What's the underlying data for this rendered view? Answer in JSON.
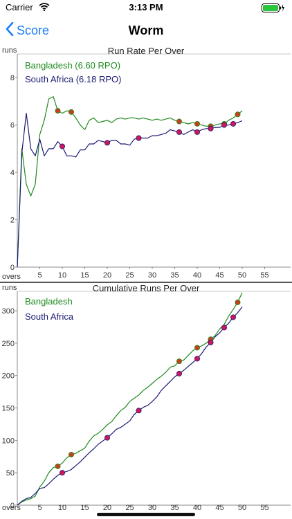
{
  "status_bar": {
    "carrier": "Carrier",
    "time": "3:13 PM"
  },
  "nav": {
    "back_label": "Score",
    "title": "Worm"
  },
  "colors": {
    "bangladesh": "#1f8a1f",
    "south_africa": "#1a1a73",
    "marker_bangladesh": "#c8401b",
    "marker_south_africa": "#d1165a",
    "accent": "#1a7ef7"
  },
  "chart_data": [
    {
      "type": "line",
      "title": "Run Rate Per Over",
      "xlabel": "overs",
      "ylabel": "runs",
      "xlim": [
        0,
        60
      ],
      "ylim": [
        0,
        9
      ],
      "xticks": [
        5,
        10,
        15,
        20,
        25,
        30,
        35,
        40,
        45,
        50,
        55
      ],
      "yticks": [
        0,
        2,
        4,
        6,
        8
      ],
      "legend": "top-left",
      "series": [
        {
          "name": "Bangladesh (6.60 RPO)",
          "x": [
            0,
            1,
            2,
            3,
            4,
            5,
            6,
            7,
            8,
            9,
            10,
            11,
            12,
            13,
            14,
            15,
            16,
            17,
            18,
            19,
            20,
            21,
            22,
            23,
            24,
            25,
            26,
            27,
            28,
            29,
            30,
            31,
            32,
            33,
            34,
            35,
            36,
            37,
            38,
            39,
            40,
            41,
            42,
            43,
            44,
            45,
            46,
            47,
            48,
            49,
            50
          ],
          "y": [
            0,
            5.0,
            3.5,
            3.0,
            3.5,
            5.6,
            6.2,
            7.1,
            7.2,
            6.6,
            6.5,
            6.6,
            6.55,
            6.3,
            6.0,
            5.8,
            6.2,
            6.3,
            6.1,
            6.15,
            6.2,
            6.1,
            6.25,
            6.3,
            6.25,
            6.3,
            6.3,
            6.25,
            6.3,
            6.25,
            6.2,
            6.25,
            6.2,
            6.25,
            6.3,
            6.2,
            6.15,
            6.1,
            6.05,
            6.1,
            6.05,
            6.0,
            5.95,
            5.95,
            6.0,
            6.05,
            6.05,
            6.2,
            6.3,
            6.45,
            6.6
          ],
          "markers_x": [
            9,
            12,
            36,
            40,
            43,
            46,
            49
          ],
          "markers_y": [
            6.6,
            6.55,
            6.15,
            6.05,
            5.95,
            6.05,
            6.45
          ]
        },
        {
          "name": "South Africa (6.18 RPO)",
          "x": [
            0,
            1,
            2,
            3,
            4,
            5,
            6,
            7,
            8,
            9,
            10,
            11,
            12,
            13,
            14,
            15,
            16,
            17,
            18,
            19,
            20,
            21,
            22,
            23,
            24,
            25,
            26,
            27,
            28,
            29,
            30,
            31,
            32,
            33,
            34,
            35,
            36,
            37,
            38,
            39,
            40,
            41,
            42,
            43,
            44,
            45,
            46,
            47,
            48,
            49,
            50
          ],
          "y": [
            0,
            4.8,
            6.5,
            5.0,
            4.7,
            5.4,
            4.7,
            5.0,
            5.0,
            5.3,
            5.1,
            4.7,
            4.7,
            4.65,
            4.95,
            4.95,
            5.2,
            5.2,
            5.35,
            5.3,
            5.25,
            5.35,
            5.35,
            5.2,
            5.2,
            5.15,
            5.4,
            5.45,
            5.45,
            5.45,
            5.55,
            5.55,
            5.6,
            5.65,
            5.8,
            5.75,
            5.7,
            5.6,
            5.7,
            5.8,
            5.7,
            5.8,
            5.85,
            5.85,
            5.9,
            5.9,
            6.0,
            6.0,
            6.05,
            6.1,
            6.18
          ],
          "markers_x": [
            10,
            20,
            27,
            36,
            40,
            43,
            46,
            48
          ],
          "markers_y": [
            5.1,
            5.25,
            5.45,
            5.7,
            5.7,
            5.85,
            6.0,
            6.05
          ]
        }
      ]
    },
    {
      "type": "line",
      "title": "Cumulative Runs Per Over",
      "xlabel": "overs",
      "ylabel": "runs",
      "xlim": [
        0,
        60
      ],
      "ylim": [
        0,
        330
      ],
      "xticks": [
        5,
        10,
        15,
        20,
        25,
        30,
        35,
        40,
        45,
        50,
        55
      ],
      "yticks": [
        0,
        50,
        100,
        150,
        200,
        250,
        300
      ],
      "legend": "top-left",
      "series": [
        {
          "name": "Bangladesh",
          "x": [
            0,
            1,
            2,
            3,
            4,
            5,
            6,
            7,
            8,
            9,
            10,
            11,
            12,
            13,
            14,
            15,
            16,
            17,
            18,
            19,
            20,
            21,
            22,
            23,
            24,
            25,
            26,
            27,
            28,
            29,
            30,
            31,
            32,
            33,
            34,
            35,
            36,
            37,
            38,
            39,
            40,
            41,
            42,
            43,
            44,
            45,
            46,
            47,
            48,
            49,
            50
          ],
          "y": [
            0,
            5,
            8,
            10,
            14,
            28,
            37,
            50,
            58,
            60,
            65,
            73,
            78,
            80,
            84,
            88,
            99,
            107,
            111,
            117,
            124,
            129,
            138,
            146,
            151,
            160,
            165,
            170,
            177,
            182,
            188,
            194,
            199,
            205,
            213,
            215,
            222,
            224,
            231,
            238,
            243,
            246,
            250,
            256,
            262,
            272,
            279,
            292,
            302,
            313,
            328
          ],
          "markers_x": [
            9,
            12,
            36,
            40,
            43,
            49
          ],
          "markers_y": [
            60,
            78,
            222,
            243,
            256,
            313
          ]
        },
        {
          "name": "South Africa",
          "x": [
            0,
            1,
            2,
            3,
            4,
            5,
            6,
            7,
            8,
            9,
            10,
            11,
            12,
            13,
            14,
            15,
            16,
            17,
            18,
            19,
            20,
            21,
            22,
            23,
            24,
            25,
            26,
            27,
            28,
            29,
            30,
            31,
            32,
            33,
            34,
            35,
            36,
            37,
            38,
            39,
            40,
            41,
            42,
            43,
            44,
            45,
            46,
            47,
            48,
            49,
            50
          ],
          "y": [
            0,
            6,
            10,
            12,
            18,
            26,
            27,
            33,
            40,
            46,
            50,
            52,
            55,
            61,
            67,
            74,
            81,
            87,
            94,
            99,
            104,
            110,
            117,
            120,
            125,
            130,
            140,
            146,
            151,
            154,
            160,
            167,
            177,
            184,
            191,
            198,
            203,
            208,
            214,
            220,
            226,
            234,
            244,
            251,
            260,
            266,
            274,
            281,
            290,
            297,
            306
          ],
          "markers_x": [
            10,
            20,
            27,
            36,
            40,
            43,
            46,
            48
          ],
          "markers_y": [
            50,
            104,
            146,
            203,
            226,
            251,
            274,
            290
          ]
        }
      ]
    }
  ]
}
